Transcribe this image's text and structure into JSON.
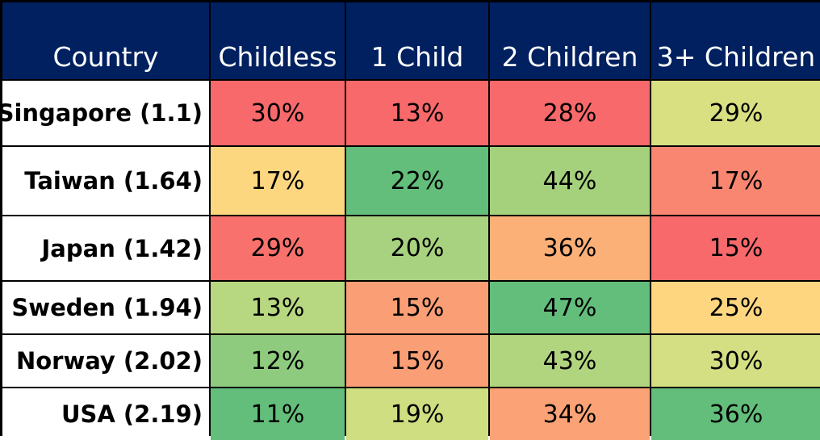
{
  "chart_data": {
    "type": "heatmap",
    "header_bg": "#002060",
    "columns": [
      "Country",
      "Childless",
      "1 Child",
      "2 Children",
      "3+ Children"
    ],
    "rows": [
      {
        "country": "Singapore (1.1)",
        "values": [
          "30%",
          "13%",
          "28%",
          "29%"
        ],
        "colors": [
          "#f8696b",
          "#f8696b",
          "#f8696b",
          "#d9e082"
        ]
      },
      {
        "country": "Taiwan (1.64)",
        "values": [
          "17%",
          "22%",
          "44%",
          "17%"
        ],
        "colors": [
          "#fdd780",
          "#63be7b",
          "#a5d17d",
          "#f98670"
        ]
      },
      {
        "country": "Japan (1.42)",
        "values": [
          "29%",
          "20%",
          "36%",
          "15%"
        ],
        "colors": [
          "#f8716c",
          "#a8d27f",
          "#fbb078",
          "#f8696b"
        ]
      },
      {
        "country": "Sweden (1.94)",
        "values": [
          "13%",
          "15%",
          "47%",
          "25%"
        ],
        "colors": [
          "#b7d780",
          "#fa9e75",
          "#63be7b",
          "#fed680"
        ]
      },
      {
        "country": "Norway (2.02)",
        "values": [
          "12%",
          "15%",
          "43%",
          "30%"
        ],
        "colors": [
          "#8fcb7e",
          "#fa9e75",
          "#b1d57f",
          "#d3df82"
        ]
      },
      {
        "country": "USA (2.19)",
        "values": [
          "11%",
          "19%",
          "34%",
          "36%"
        ],
        "colors": [
          "#63be7b",
          "#d0de82",
          "#fba376",
          "#63be7b"
        ]
      }
    ]
  }
}
